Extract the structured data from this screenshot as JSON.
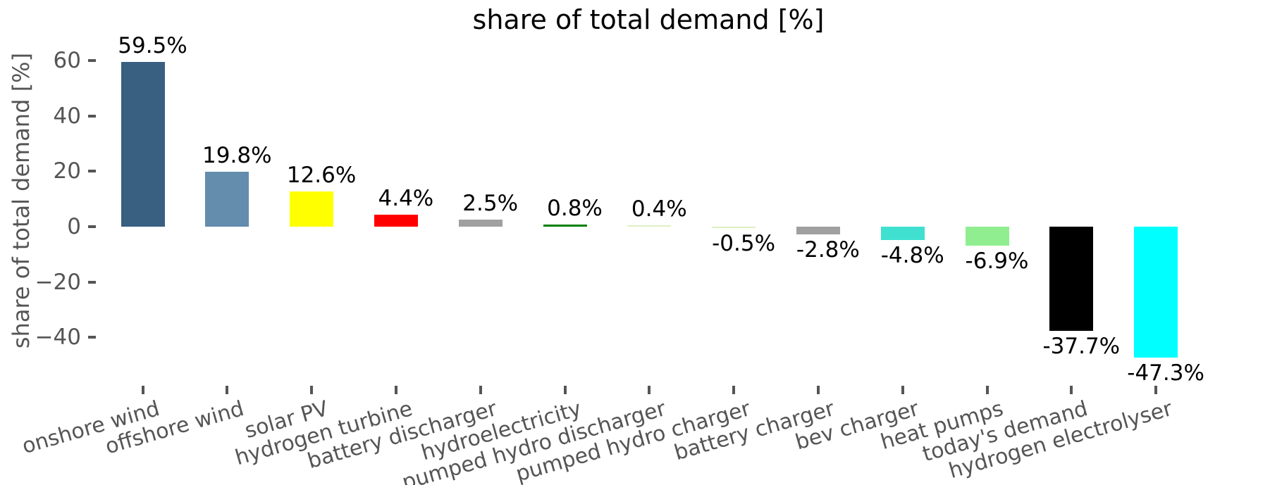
{
  "chart_data": {
    "type": "bar",
    "title": "share of total demand [%]",
    "xlabel": "",
    "ylabel": "share of total demand [%]",
    "categories": [
      "onshore wind",
      "offshore wind",
      "solar PV",
      "hydrogen turbine",
      "battery discharger",
      "hydroelectricity",
      "pumped hydro discharger",
      "pumped hydro charger",
      "battery charger",
      "bev charger",
      "heat pumps",
      "today's demand",
      "hydrogen electrolyser"
    ],
    "values": [
      59.5,
      19.8,
      12.6,
      4.4,
      2.5,
      0.8,
      0.4,
      -0.5,
      -2.8,
      -4.8,
      -6.9,
      -37.7,
      -47.3
    ],
    "value_labels": [
      "59.5%",
      "19.8%",
      "12.6%",
      "4.4%",
      "2.5%",
      "0.8%",
      "0.4%",
      "-0.5%",
      "-2.8%",
      "-4.8%",
      "-6.9%",
      "-37.7%",
      "-47.3%"
    ],
    "bar_colors": [
      "#395F81",
      "#638CAD",
      "#FFFF00",
      "#FF0000",
      "#A0A0A0",
      "#008000",
      "#DDF1C2",
      "#DDF1C2",
      "#A0A0A0",
      "#40E0D0",
      "#90EE90",
      "#000000",
      "#00FFFF"
    ],
    "yticks": {
      "labels": [
        "60",
        "40",
        "20",
        "0",
        "−20",
        "−40"
      ],
      "values": [
        60,
        40,
        20,
        0,
        -20,
        -40
      ]
    },
    "ylim": [
      -52,
      68
    ],
    "grid": false,
    "legend": false,
    "xtick_rotation_deg": 16,
    "axis_text_color": "#555555",
    "annotation_text_color": "#000000",
    "background_color": "#ffffff"
  }
}
